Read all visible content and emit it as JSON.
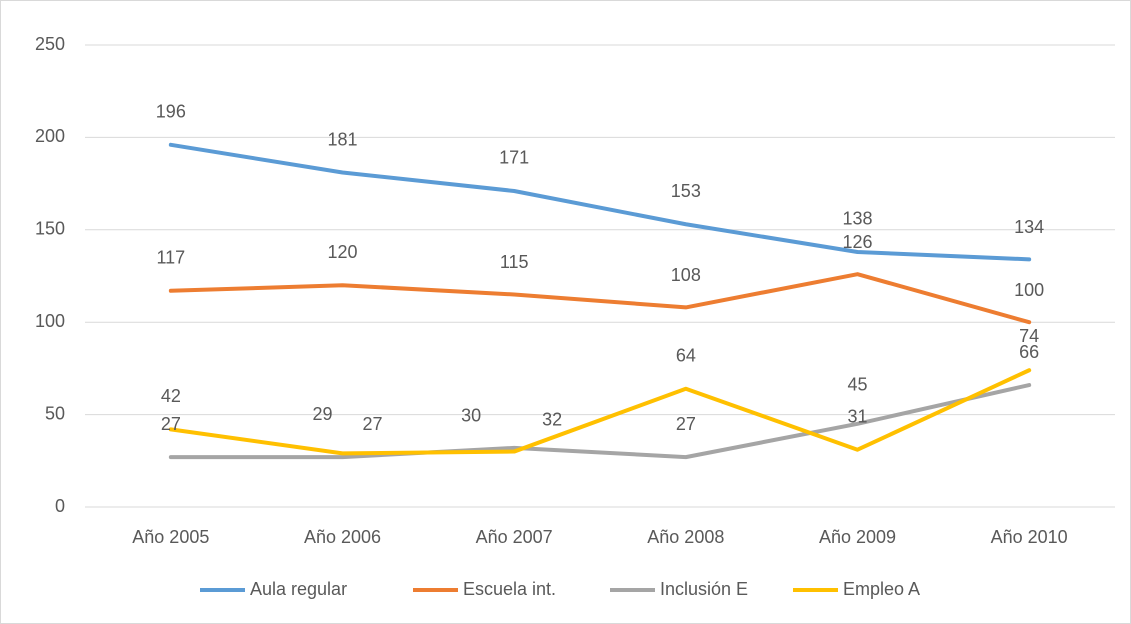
{
  "chart_data": {
    "type": "line",
    "categories": [
      "Año 2005",
      "Año 2006",
      "Año 2007",
      "Año 2008",
      "Año 2009",
      "Año 2010"
    ],
    "series": [
      {
        "name": "Aula regular",
        "color": "#5b9bd5",
        "values": [
          196,
          181,
          171,
          153,
          138,
          134
        ]
      },
      {
        "name": "Escuela int.",
        "color": "#ed7d31",
        "values": [
          117,
          120,
          115,
          108,
          126,
          100
        ]
      },
      {
        "name": "Inclusión E",
        "color": "#a5a5a5",
        "values": [
          27,
          27,
          32,
          27,
          45,
          66
        ]
      },
      {
        "name": "Empleo A",
        "color": "#ffc000",
        "values": [
          42,
          29,
          30,
          64,
          31,
          74
        ]
      }
    ],
    "ylim": [
      0,
      250
    ],
    "yticks": [
      0,
      50,
      100,
      150,
      200,
      250
    ],
    "grid": true,
    "legend": "bottom"
  }
}
